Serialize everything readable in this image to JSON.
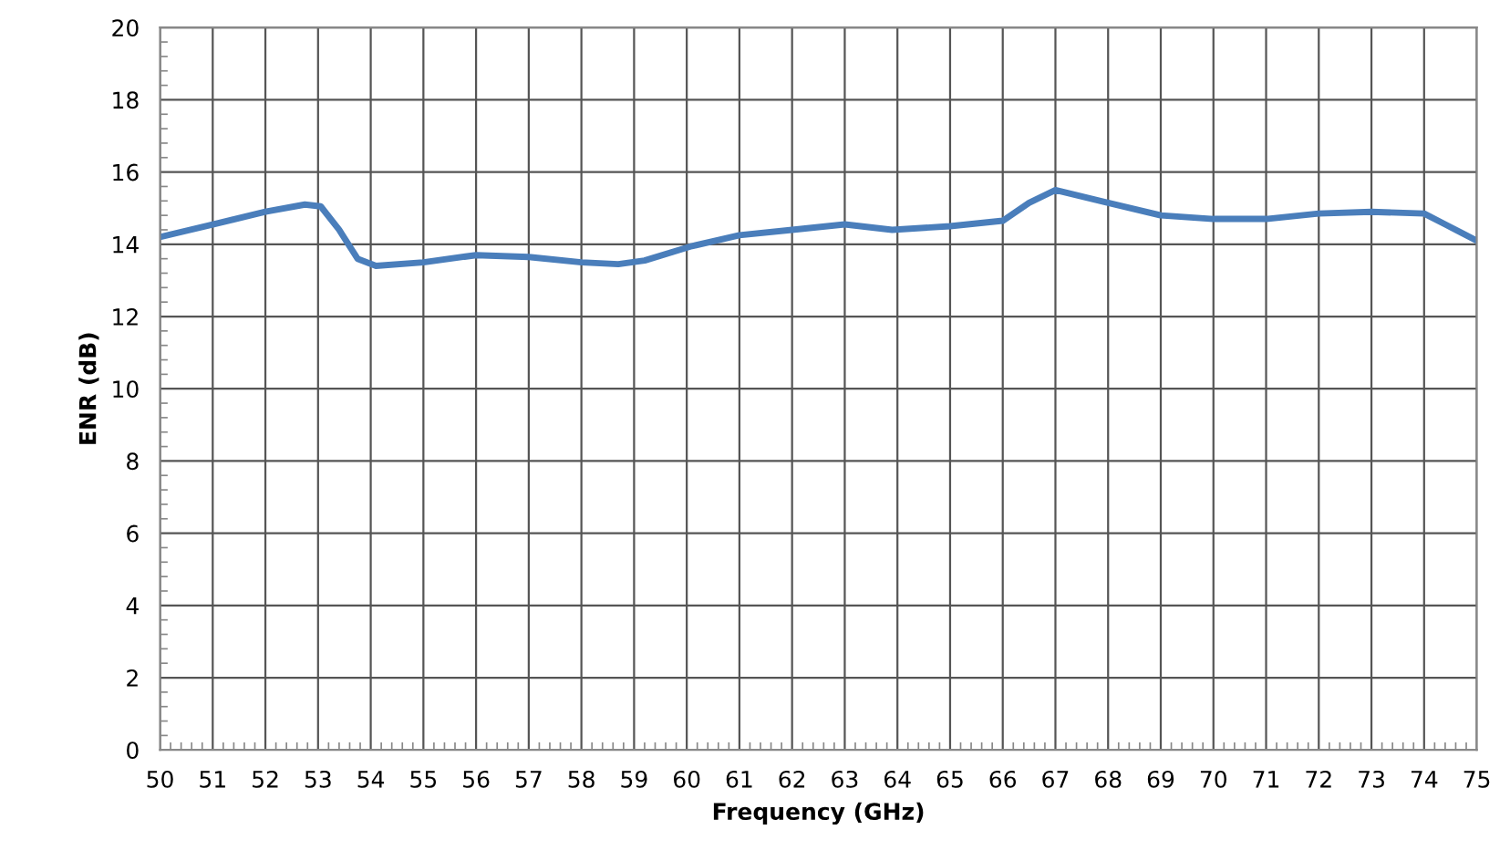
{
  "chart_data": {
    "type": "line",
    "xlabel": "Frequency (GHz)",
    "ylabel": "ENR (dB)",
    "x": [
      50,
      51,
      52,
      52.75,
      53.05,
      53.4,
      53.75,
      54.1,
      55,
      56,
      57,
      58,
      58.7,
      59.2,
      60.1,
      61,
      62,
      63,
      63.9,
      65,
      66,
      66.5,
      67,
      68,
      69,
      70,
      71,
      72,
      73,
      74,
      74.4,
      75
    ],
    "series": [
      {
        "color": "#4a7ebb",
        "values": [
          14.2,
          14.55,
          14.9,
          15.1,
          15.05,
          14.4,
          13.6,
          13.4,
          13.5,
          13.7,
          13.65,
          13.5,
          13.45,
          13.55,
          13.95,
          14.25,
          14.4,
          14.55,
          14.4,
          14.5,
          14.65,
          15.15,
          15.5,
          15.15,
          14.8,
          14.7,
          14.7,
          14.85,
          14.9,
          14.85,
          14.55,
          14.1
        ]
      }
    ],
    "xlim": [
      50,
      75
    ],
    "xticks": [
      50,
      51,
      52,
      53,
      54,
      55,
      56,
      57,
      58,
      59,
      60,
      61,
      62,
      63,
      64,
      65,
      66,
      67,
      68,
      69,
      70,
      71,
      72,
      73,
      74,
      75
    ],
    "ylim": [
      0,
      20
    ],
    "yticks": [
      0,
      2,
      4,
      6,
      8,
      10,
      12,
      14,
      16,
      18,
      20
    ],
    "grid": true,
    "legend": false,
    "marker": "none",
    "line_style": "solid"
  }
}
